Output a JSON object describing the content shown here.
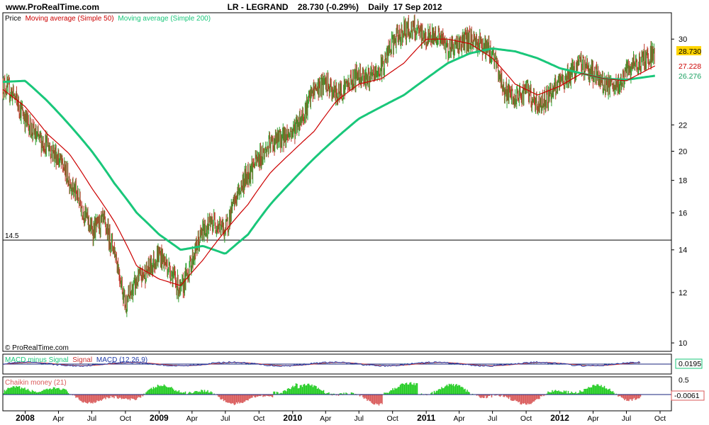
{
  "header": {
    "site": "www.ProRealTime.com",
    "title": "LR - LEGRAND    28.730 (-0.29%)    Daily  17 Sep 2012"
  },
  "legend": {
    "price": "Price",
    "ma50": "Moving average (Simple 50)",
    "ma200": "Moving average (Simple 200)"
  },
  "copyright": "© ProRealTime.com",
  "colors": {
    "price_up": "#2ca02c",
    "price_down": "#c0392b",
    "ma50": "#cc0000",
    "ma200": "#19c77a",
    "macd": "#1f3aa8",
    "signal": "#cc3333",
    "macd_hist": "#19c77a",
    "chaikin_pos": "#22cc22",
    "chaikin_neg": "#d95a5a",
    "zero_line": "#1a237e",
    "last_price_bg": "#ffd400"
  },
  "macd_panel": {
    "label_hist": "MACD minus Signal",
    "label_signal": "Signal",
    "label_macd": "MACD (12,26,9)",
    "value": "0.0195"
  },
  "chaikin_panel": {
    "label": "Chaikin money (21)",
    "scale_top": "0.5",
    "value": "-0.0061"
  },
  "chart_data": {
    "type": "line",
    "symbol": "LR - LEGRAND",
    "ylim": [
      9.7,
      33
    ],
    "y_scale": "log",
    "y_ticks": [
      10,
      12,
      14,
      16,
      18,
      20,
      22,
      30
    ],
    "reference_line": {
      "value": 14.5,
      "label": "14.5"
    },
    "x_ticks": [
      {
        "date": "2008-01-01",
        "label": "2008",
        "bold": true
      },
      {
        "date": "2008-04-01",
        "label": "Apr"
      },
      {
        "date": "2008-07-01",
        "label": "Jul"
      },
      {
        "date": "2008-10-01",
        "label": "Oct"
      },
      {
        "date": "2009-01-01",
        "label": "2009",
        "bold": true
      },
      {
        "date": "2009-04-01",
        "label": "Apr"
      },
      {
        "date": "2009-07-01",
        "label": "Jul"
      },
      {
        "date": "2009-10-01",
        "label": "Oct"
      },
      {
        "date": "2010-01-01",
        "label": "2010",
        "bold": true
      },
      {
        "date": "2010-04-01",
        "label": "Apr"
      },
      {
        "date": "2010-07-01",
        "label": "Jul"
      },
      {
        "date": "2010-10-01",
        "label": "Oct"
      },
      {
        "date": "2011-01-01",
        "label": "2011",
        "bold": true
      },
      {
        "date": "2011-04-01",
        "label": "Apr"
      },
      {
        "date": "2011-07-01",
        "label": "Jul"
      },
      {
        "date": "2011-10-01",
        "label": "Oct"
      },
      {
        "date": "2012-01-01",
        "label": "2012",
        "bold": true
      },
      {
        "date": "2012-04-01",
        "label": "Apr"
      },
      {
        "date": "2012-07-01",
        "label": "Jul"
      },
      {
        "date": "2012-10-01",
        "label": "Oct"
      }
    ],
    "last_values": {
      "price": "28.730",
      "ma50": "27.228",
      "ma200": "26.276"
    },
    "series": [
      {
        "name": "Price",
        "x": [
          "2007-11-01",
          "2007-12-01",
          "2008-01-01",
          "2008-02-01",
          "2008-03-01",
          "2008-04-01",
          "2008-05-01",
          "2008-06-01",
          "2008-07-01",
          "2008-08-01",
          "2008-09-01",
          "2008-10-01",
          "2008-11-01",
          "2008-12-01",
          "2009-01-01",
          "2009-02-01",
          "2009-03-01",
          "2009-04-01",
          "2009-05-01",
          "2009-06-01",
          "2009-07-01",
          "2009-08-01",
          "2009-09-01",
          "2009-10-01",
          "2009-11-01",
          "2009-12-01",
          "2010-01-01",
          "2010-02-01",
          "2010-03-01",
          "2010-04-01",
          "2010-05-01",
          "2010-06-01",
          "2010-07-01",
          "2010-08-01",
          "2010-09-01",
          "2010-10-01",
          "2010-11-01",
          "2010-12-01",
          "2011-01-01",
          "2011-02-01",
          "2011-03-01",
          "2011-04-01",
          "2011-05-01",
          "2011-06-01",
          "2011-07-01",
          "2011-08-01",
          "2011-09-01",
          "2011-10-01",
          "2011-11-01",
          "2011-12-01",
          "2012-01-01",
          "2012-02-01",
          "2012-03-01",
          "2012-04-01",
          "2012-05-01",
          "2012-06-01",
          "2012-07-01",
          "2012-08-01",
          "2012-09-17"
        ],
        "y": [
          25.5,
          24.5,
          22.5,
          21.0,
          20.5,
          19.5,
          18.0,
          16.5,
          15.0,
          15.5,
          14.0,
          11.5,
          12.5,
          13.0,
          13.8,
          13.0,
          12.0,
          13.5,
          15.0,
          15.5,
          15.0,
          17.0,
          18.5,
          19.5,
          20.5,
          21.0,
          21.5,
          23.0,
          25.0,
          25.5,
          24.5,
          25.5,
          26.5,
          26.0,
          27.0,
          29.5,
          31.0,
          31.0,
          30.0,
          30.5,
          29.0,
          29.5,
          30.0,
          29.5,
          28.5,
          25.0,
          24.0,
          25.0,
          23.5,
          24.5,
          25.5,
          26.5,
          27.5,
          26.5,
          25.5,
          25.0,
          26.5,
          27.5,
          28.73
        ]
      },
      {
        "name": "Moving average (Simple 50)",
        "x": [
          "2007-11-01",
          "2008-01-01",
          "2008-03-01",
          "2008-05-01",
          "2008-07-01",
          "2008-09-01",
          "2008-11-01",
          "2009-01-01",
          "2009-03-01",
          "2009-05-01",
          "2009-07-01",
          "2009-09-01",
          "2009-11-01",
          "2010-01-01",
          "2010-03-01",
          "2010-05-01",
          "2010-07-01",
          "2010-09-01",
          "2010-11-01",
          "2011-01-01",
          "2011-03-01",
          "2011-05-01",
          "2011-07-01",
          "2011-09-01",
          "2011-11-01",
          "2012-01-01",
          "2012-03-01",
          "2012-05-01",
          "2012-07-01",
          "2012-09-17"
        ],
        "y": [
          25.0,
          23.5,
          21.3,
          19.8,
          17.5,
          15.5,
          13.2,
          12.6,
          12.3,
          13.5,
          15.0,
          16.5,
          18.5,
          20.0,
          21.5,
          24.0,
          25.5,
          26.0,
          27.5,
          30.0,
          30.0,
          29.5,
          28.0,
          25.5,
          24.5,
          25.3,
          26.5,
          26.0,
          25.8,
          27.228
        ]
      },
      {
        "name": "Moving average (Simple 200)",
        "x": [
          "2007-11-01",
          "2008-01-01",
          "2008-03-01",
          "2008-05-01",
          "2008-07-01",
          "2008-09-01",
          "2008-11-01",
          "2009-01-01",
          "2009-03-01",
          "2009-05-01",
          "2009-07-01",
          "2009-09-01",
          "2009-11-01",
          "2010-01-01",
          "2010-03-01",
          "2010-05-01",
          "2010-07-01",
          "2010-09-01",
          "2010-11-01",
          "2011-01-01",
          "2011-03-01",
          "2011-05-01",
          "2011-07-01",
          "2011-09-01",
          "2011-11-01",
          "2012-01-01",
          "2012-03-01",
          "2012-05-01",
          "2012-07-01",
          "2012-09-17"
        ],
        "y": [
          25.7,
          25.8,
          24.0,
          22.0,
          20.0,
          17.8,
          16.0,
          14.8,
          14.0,
          14.2,
          13.8,
          14.8,
          16.5,
          18.0,
          19.5,
          21.0,
          22.5,
          23.5,
          24.5,
          26.0,
          27.5,
          28.5,
          29.0,
          28.7,
          28.0,
          27.0,
          26.5,
          26.0,
          25.9,
          26.276
        ]
      }
    ]
  }
}
